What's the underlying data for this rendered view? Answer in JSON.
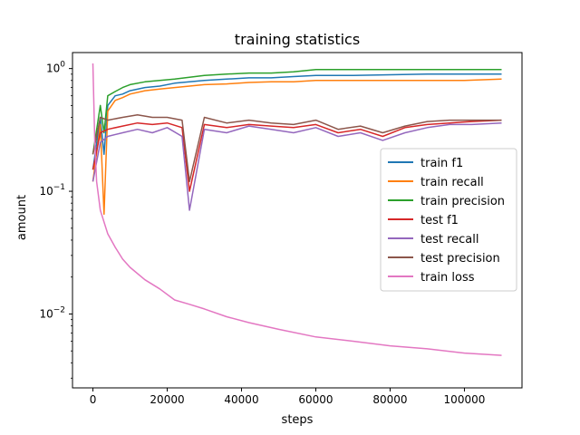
{
  "chart_data": {
    "type": "line",
    "title": "training statistics",
    "xlabel": "steps",
    "ylabel": "amount",
    "xlim": [
      -5500,
      115500
    ],
    "ylim": [
      0.0025,
      1.35
    ],
    "yscale": "log",
    "xticks": [
      0,
      20000,
      40000,
      60000,
      80000,
      100000
    ],
    "xtick_labels": [
      "0",
      "20000",
      "40000",
      "60000",
      "80000",
      "100000"
    ],
    "yticks": [
      0.01,
      0.1,
      1
    ],
    "ytick_labels": [
      [
        "10",
        "−2"
      ],
      [
        "10",
        "−1"
      ],
      [
        "10",
        "0"
      ]
    ],
    "legend_position": "center-right",
    "grid": false,
    "series": [
      {
        "name": "train f1",
        "color": "#1f77b4",
        "x": [
          0,
          2000,
          3000,
          4000,
          6000,
          8000,
          10000,
          14000,
          18000,
          22000,
          26000,
          30000,
          36000,
          42000,
          48000,
          54000,
          60000,
          70000,
          80000,
          90000,
          100000,
          110000
        ],
        "y": [
          0.15,
          0.4,
          0.2,
          0.5,
          0.6,
          0.62,
          0.66,
          0.7,
          0.72,
          0.76,
          0.78,
          0.8,
          0.82,
          0.84,
          0.84,
          0.86,
          0.88,
          0.88,
          0.89,
          0.9,
          0.9,
          0.9
        ]
      },
      {
        "name": "train recall",
        "color": "#ff7f0e",
        "x": [
          0,
          2000,
          3000,
          4000,
          6000,
          8000,
          10000,
          14000,
          18000,
          22000,
          26000,
          30000,
          36000,
          42000,
          48000,
          54000,
          60000,
          70000,
          80000,
          90000,
          100000,
          110000
        ],
        "y": [
          0.12,
          0.35,
          0.065,
          0.45,
          0.55,
          0.58,
          0.62,
          0.66,
          0.68,
          0.7,
          0.72,
          0.74,
          0.75,
          0.77,
          0.78,
          0.78,
          0.8,
          0.8,
          0.8,
          0.8,
          0.8,
          0.82
        ]
      },
      {
        "name": "train precision",
        "color": "#2ca02c",
        "x": [
          0,
          2000,
          3000,
          4000,
          6000,
          8000,
          10000,
          14000,
          18000,
          22000,
          26000,
          30000,
          36000,
          42000,
          48000,
          54000,
          60000,
          70000,
          80000,
          90000,
          100000,
          110000
        ],
        "y": [
          0.2,
          0.5,
          0.3,
          0.6,
          0.65,
          0.7,
          0.74,
          0.78,
          0.8,
          0.82,
          0.85,
          0.88,
          0.9,
          0.92,
          0.92,
          0.94,
          0.98,
          0.98,
          0.98,
          0.98,
          0.98,
          0.98
        ]
      },
      {
        "name": "test f1",
        "color": "#d62728",
        "x": [
          0,
          2000,
          4000,
          8000,
          12000,
          16000,
          20000,
          24000,
          26000,
          30000,
          36000,
          42000,
          48000,
          54000,
          60000,
          66000,
          72000,
          78000,
          84000,
          90000,
          96000,
          102000,
          110000
        ],
        "y": [
          0.15,
          0.3,
          0.32,
          0.34,
          0.36,
          0.35,
          0.36,
          0.33,
          0.1,
          0.35,
          0.33,
          0.35,
          0.34,
          0.33,
          0.35,
          0.3,
          0.32,
          0.28,
          0.33,
          0.35,
          0.36,
          0.37,
          0.38
        ]
      },
      {
        "name": "test recall",
        "color": "#9467bd",
        "x": [
          0,
          2000,
          4000,
          8000,
          12000,
          16000,
          20000,
          24000,
          26000,
          30000,
          36000,
          42000,
          48000,
          54000,
          60000,
          66000,
          72000,
          78000,
          84000,
          90000,
          96000,
          102000,
          110000
        ],
        "y": [
          0.12,
          0.25,
          0.28,
          0.3,
          0.32,
          0.3,
          0.33,
          0.28,
          0.07,
          0.32,
          0.3,
          0.34,
          0.32,
          0.3,
          0.33,
          0.28,
          0.3,
          0.26,
          0.3,
          0.33,
          0.35,
          0.35,
          0.36
        ]
      },
      {
        "name": "test precision",
        "color": "#8c564b",
        "x": [
          0,
          2000,
          4000,
          8000,
          12000,
          16000,
          20000,
          24000,
          26000,
          30000,
          36000,
          42000,
          48000,
          54000,
          60000,
          66000,
          72000,
          78000,
          84000,
          90000,
          96000,
          102000,
          110000
        ],
        "y": [
          0.2,
          0.4,
          0.38,
          0.4,
          0.42,
          0.4,
          0.4,
          0.38,
          0.12,
          0.4,
          0.36,
          0.38,
          0.36,
          0.35,
          0.38,
          0.32,
          0.34,
          0.3,
          0.34,
          0.37,
          0.38,
          0.38,
          0.38
        ]
      },
      {
        "name": "train loss",
        "color": "#e377c2",
        "x": [
          0,
          500,
          1000,
          2000,
          4000,
          6000,
          8000,
          10000,
          14000,
          18000,
          22000,
          26000,
          30000,
          36000,
          42000,
          50000,
          60000,
          70000,
          80000,
          90000,
          100000,
          110000
        ],
        "y": [
          1.1,
          0.25,
          0.12,
          0.07,
          0.045,
          0.035,
          0.028,
          0.024,
          0.019,
          0.016,
          0.013,
          0.012,
          0.011,
          0.0095,
          0.0085,
          0.0075,
          0.0065,
          0.006,
          0.0055,
          0.0052,
          0.0048,
          0.0046
        ]
      }
    ]
  }
}
